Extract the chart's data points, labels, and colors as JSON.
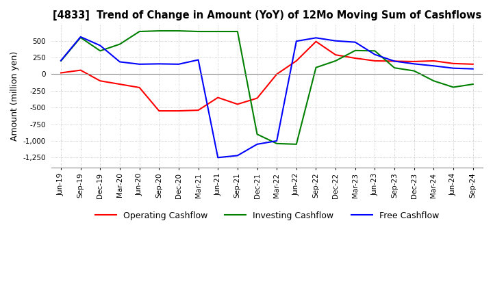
{
  "title": "[4833]  Trend of Change in Amount (YoY) of 12Mo Moving Sum of Cashflows",
  "ylabel": "Amount (million yen)",
  "x_labels": [
    "Jun-19",
    "Sep-19",
    "Dec-19",
    "Mar-20",
    "Jun-20",
    "Sep-20",
    "Dec-20",
    "Mar-21",
    "Jun-21",
    "Sep-21",
    "Dec-21",
    "Mar-22",
    "Jun-22",
    "Sep-22",
    "Dec-22",
    "Mar-23",
    "Jun-23",
    "Sep-23",
    "Dec-23",
    "Mar-24",
    "Jun-24",
    "Sep-24"
  ],
  "operating": [
    20,
    60,
    -100,
    -150,
    -200,
    -550,
    -550,
    -540,
    -350,
    -450,
    -360,
    0,
    200,
    490,
    290,
    240,
    200,
    195,
    190,
    200,
    160,
    150
  ],
  "investing": [
    200,
    550,
    350,
    450,
    640,
    650,
    650,
    640,
    640,
    640,
    -900,
    -1040,
    -1050,
    100,
    200,
    355,
    350,
    95,
    50,
    -100,
    -195,
    -150
  ],
  "free": [
    205,
    560,
    430,
    185,
    150,
    155,
    150,
    215,
    -1250,
    -1220,
    -1050,
    -1000,
    495,
    545,
    500,
    480,
    295,
    195,
    155,
    125,
    90,
    80
  ],
  "operating_color": "#FF0000",
  "investing_color": "#008000",
  "free_color": "#0000FF",
  "background_color": "#FFFFFF",
  "grid_color": "#BBBBBB",
  "ylim": [
    -1400,
    750
  ],
  "yticks": [
    -1250,
    -1000,
    -750,
    -500,
    -250,
    0,
    250,
    500
  ]
}
